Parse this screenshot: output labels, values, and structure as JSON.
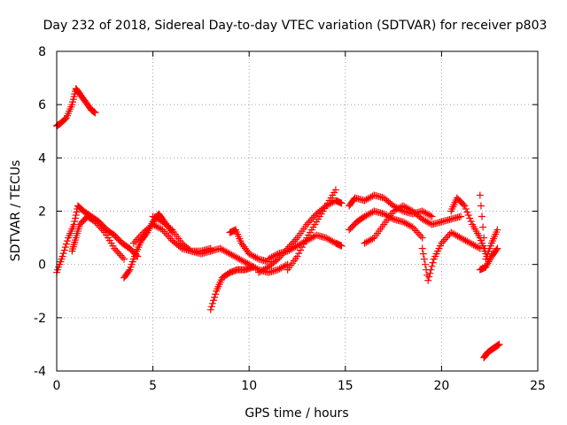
{
  "chart_data": {
    "type": "scatter",
    "title": "Day 232 of 2018, Sidereal Day-to-day VTEC variation (SDTVAR) for receiver p803",
    "xlabel": "GPS time / hours",
    "ylabel": "SDTVAR / TECUs",
    "xlim": [
      0,
      25
    ],
    "ylim": [
      -4,
      8
    ],
    "xticks": [
      "0",
      "5",
      "10",
      "15",
      "20",
      "25"
    ],
    "yticks": [
      "-4",
      "-2",
      "0",
      "2",
      "4",
      "6",
      "8"
    ],
    "grid": true,
    "marker": "+",
    "color": "#ff0000",
    "segments": [
      {
        "name": "arc-high-1",
        "x": [
          0.0,
          0.2,
          0.5,
          0.8,
          1.0,
          1.2,
          1.5,
          1.8,
          2.0
        ],
        "y": [
          5.2,
          5.3,
          5.5,
          6.0,
          6.6,
          6.4,
          6.1,
          5.8,
          5.7
        ]
      },
      {
        "name": "arc-main-1",
        "x": [
          0.0,
          0.3,
          0.6,
          0.9,
          1.1,
          1.4,
          1.8,
          2.2,
          2.6,
          3.0,
          3.4,
          3.8,
          4.2
        ],
        "y": [
          -0.3,
          0.3,
          1.0,
          1.5,
          2.2,
          2.0,
          1.8,
          1.6,
          1.3,
          1.1,
          0.8,
          0.6,
          0.3
        ]
      },
      {
        "name": "arc-main-2",
        "x": [
          0.8,
          1.0,
          1.2,
          1.6,
          2.0,
          2.5,
          3.0,
          3.5
        ],
        "y": [
          0.5,
          1.0,
          1.5,
          1.8,
          1.6,
          1.2,
          0.6,
          0.2
        ]
      },
      {
        "name": "arc-main-3",
        "x": [
          3.5,
          3.8,
          4.1,
          4.4,
          4.7,
          5.0,
          5.3,
          5.6,
          6.0
        ],
        "y": [
          -0.5,
          -0.2,
          0.4,
          0.9,
          1.2,
          1.6,
          1.9,
          1.6,
          1.2
        ]
      },
      {
        "name": "arc-main-4",
        "x": [
          4.0,
          4.5,
          5.0,
          5.5,
          6.0,
          6.5,
          7.0,
          7.5,
          8.0
        ],
        "y": [
          0.8,
          1.2,
          1.5,
          1.3,
          0.9,
          0.6,
          0.5,
          0.5,
          0.6
        ]
      },
      {
        "name": "arc-main-5",
        "x": [
          5.0,
          5.5,
          6.0,
          6.5,
          7.0,
          7.5,
          8.0
        ],
        "y": [
          1.8,
          1.6,
          1.3,
          0.8,
          0.5,
          0.4,
          0.5
        ]
      },
      {
        "name": "arc-low-1",
        "x": [
          8.0,
          8.3,
          8.6,
          9.0,
          9.4,
          9.8,
          10.2
        ],
        "y": [
          -1.7,
          -1.0,
          -0.5,
          -0.3,
          -0.2,
          -0.2,
          -0.1
        ]
      },
      {
        "name": "arc-mid-1",
        "x": [
          8.0,
          8.5,
          9.0,
          9.5,
          10.0,
          10.5,
          11.0,
          11.5,
          12.0
        ],
        "y": [
          0.5,
          0.6,
          0.4,
          0.2,
          0.0,
          -0.2,
          -0.3,
          -0.2,
          0.0
        ]
      },
      {
        "name": "arc-mid-2",
        "x": [
          9.0,
          9.3,
          9.6,
          10.0,
          10.5,
          11.0
        ],
        "y": [
          1.2,
          1.3,
          0.8,
          0.4,
          0.2,
          0.1
        ]
      },
      {
        "name": "arc-rise-1",
        "x": [
          10.5,
          11.0,
          11.5,
          12.0,
          12.5,
          13.0,
          13.5,
          14.0,
          14.5,
          14.8
        ],
        "y": [
          -0.3,
          -0.1,
          0.2,
          0.6,
          1.0,
          1.5,
          1.9,
          2.2,
          2.4,
          2.3
        ]
      },
      {
        "name": "arc-rise-2",
        "x": [
          11.0,
          11.5,
          12.0,
          12.5,
          13.0,
          13.5,
          14.0,
          14.5,
          14.8
        ],
        "y": [
          0.2,
          0.4,
          0.5,
          0.7,
          0.9,
          1.1,
          1.0,
          0.8,
          0.7
        ]
      },
      {
        "name": "arc-rise-3",
        "x": [
          12.0,
          12.5,
          13.0,
          13.5,
          14.0,
          14.5
        ],
        "y": [
          -0.2,
          0.3,
          1.0,
          1.6,
          2.2,
          2.8
        ]
      },
      {
        "name": "arc-late-1",
        "x": [
          15.2,
          15.5,
          16.0,
          16.5,
          17.0,
          17.5,
          18.0,
          18.5,
          19.0,
          19.5
        ],
        "y": [
          2.2,
          2.5,
          2.4,
          2.6,
          2.5,
          2.2,
          2.0,
          1.9,
          2.0,
          1.8
        ]
      },
      {
        "name": "arc-late-2",
        "x": [
          15.2,
          15.6,
          16.0,
          16.5,
          17.0,
          17.5,
          18.0,
          18.5,
          19.0
        ],
        "y": [
          1.3,
          1.6,
          1.8,
          2.0,
          1.9,
          1.7,
          1.6,
          1.4,
          1.0
        ]
      },
      {
        "name": "arc-late-3",
        "x": [
          16.0,
          16.5,
          17.0,
          17.5,
          18.0,
          18.5,
          19.0,
          19.5,
          20.0,
          20.5,
          21.0
        ],
        "y": [
          0.8,
          1.0,
          1.5,
          2.0,
          2.2,
          2.0,
          1.7,
          1.5,
          1.6,
          1.7,
          1.8
        ]
      },
      {
        "name": "arc-late-4",
        "x": [
          19.0,
          19.3,
          19.6,
          20.0,
          20.5,
          21.0,
          21.5,
          22.0
        ],
        "y": [
          0.6,
          -0.6,
          0.2,
          0.8,
          1.2,
          1.0,
          0.8,
          0.6
        ]
      },
      {
        "name": "arc-late-5",
        "x": [
          20.5,
          20.8,
          21.2,
          21.6,
          22.0,
          22.3
        ],
        "y": [
          2.0,
          2.5,
          2.2,
          1.5,
          1.0,
          0.4
        ]
      },
      {
        "name": "arc-late-6",
        "x": [
          22.0,
          22.3,
          22.6,
          22.9
        ],
        "y": [
          2.6,
          0.2,
          0.8,
          1.3
        ]
      },
      {
        "name": "arc-late-7",
        "x": [
          22.0,
          22.3,
          22.6,
          22.9
        ],
        "y": [
          -0.2,
          -0.1,
          0.3,
          0.6
        ]
      },
      {
        "name": "arc-neg-1",
        "x": [
          22.2,
          22.4,
          22.6,
          22.8,
          23.0
        ],
        "y": [
          -3.5,
          -3.3,
          -3.2,
          -3.1,
          -3.0
        ]
      }
    ]
  }
}
